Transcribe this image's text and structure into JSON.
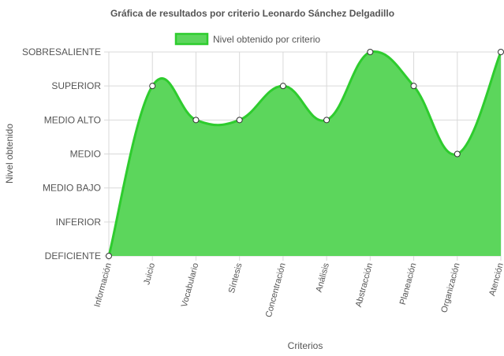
{
  "chart_data": {
    "type": "line",
    "title": "Gráfica de resultados por criterio Leonardo Sánchez Delgadillo",
    "xlabel": "Criterios",
    "ylabel": "Nivel obtenido",
    "categories": [
      "Información",
      "Juicio",
      "Vocabulario",
      "Síntesis",
      "Concentración",
      "Análisis",
      "Abstracción",
      "Planeación",
      "Organización",
      "Atención"
    ],
    "levels": [
      "DEFICIENTE",
      "INFERIOR",
      "MEDIO BAJO",
      "MEDIO",
      "MEDIO ALTO",
      "SUPERIOR",
      "SOBRESALIENTE"
    ],
    "series": [
      {
        "name": "Nivel obtenido por criterio",
        "values": [
          0,
          5,
          4,
          4,
          5,
          4,
          6,
          5,
          3,
          6
        ]
      }
    ],
    "ylim": [
      0,
      6
    ],
    "fill": true,
    "grid": true,
    "legend": "top-center",
    "colors": {
      "line": "#2ecc2e",
      "fill": "#5cd65c",
      "grid": "#d9d9d9",
      "point_fill": "#ffffff",
      "point_stroke": "#333333"
    }
  }
}
